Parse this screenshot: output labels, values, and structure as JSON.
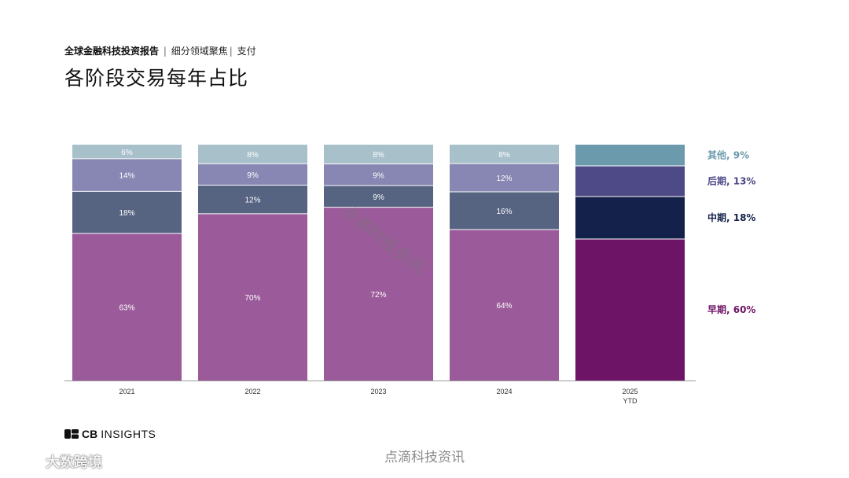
{
  "header": {
    "breadcrumb_report": "全球金融科技投资报告",
    "breadcrumb_sep1": "|",
    "breadcrumb_section": "细分领域聚焦",
    "breadcrumb_sep2": "|",
    "breadcrumb_topic": "支付"
  },
  "page_title": "各阶段交易每年占比",
  "chart_data": {
    "type": "bar",
    "stacked": true,
    "percent_stacked": true,
    "title": "各阶段交易每年占比",
    "xlabel": "",
    "ylabel": "",
    "ylim": [
      0,
      100
    ],
    "grid": false,
    "categories": [
      "2021",
      "2022",
      "2023",
      "2024",
      "2025 YTD"
    ],
    "category_labels": [
      [
        "2021"
      ],
      [
        "2022"
      ],
      [
        "2023"
      ],
      [
        "2024"
      ],
      [
        "2025",
        "YTD"
      ]
    ],
    "series": [
      {
        "name": "早期",
        "values": [
          63,
          70,
          72,
          64,
          60
        ],
        "color": "#9b5a9a",
        "color_latest": "#6e1467"
      },
      {
        "name": "中期",
        "values": [
          18,
          12,
          9,
          16,
          18
        ],
        "color": "#566482",
        "color_latest": "#14214a"
      },
      {
        "name": "后期",
        "values": [
          14,
          9,
          9,
          12,
          13
        ],
        "color": "#8886b2",
        "color_latest": "#4d4a87"
      },
      {
        "name": "其他",
        "values": [
          6,
          8,
          8,
          8,
          9
        ],
        "color": "#a7c0ca",
        "color_latest": "#6a9aab"
      }
    ],
    "legend": {
      "placement": "right",
      "entries": [
        "其他, 9%",
        "后期, 13%",
        "中期, 18%",
        "早期, 60%"
      ],
      "colors": [
        "#6a9aab",
        "#4d4a87",
        "#14214a",
        "#6e1467"
      ]
    },
    "data_label_color": "#ffffff",
    "axis_color": "#9a9a9a"
  },
  "logo": {
    "bold": "CB",
    "rest": "INSIGHTS"
  },
  "watermarks": {
    "bottom": "点滴科技资讯",
    "diagonal": "点滴科技资讯",
    "corner": "大数跨境"
  }
}
